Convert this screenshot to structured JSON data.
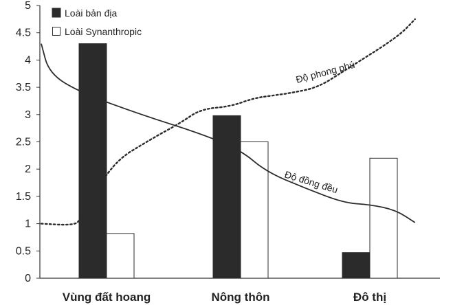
{
  "chart_data": {
    "type": "bar",
    "categories": [
      "Vùng đất hoang",
      "Nông thôn",
      "Đô thị"
    ],
    "series": [
      {
        "name": "Loài bản địa",
        "values": [
          4.3,
          2.98,
          0.47
        ],
        "color": "#2b2b2b"
      },
      {
        "name": "Loài Synanthropic",
        "values": [
          0.82,
          2.5,
          2.2
        ],
        "color": "#ffffff"
      }
    ],
    "ylim": [
      0,
      5
    ],
    "yticks": [
      "0",
      "0.5",
      "1",
      "1.5",
      "2",
      "2.5",
      "3",
      "3.5",
      "4",
      "4.5",
      "5"
    ],
    "ytick_values": [
      0,
      0.5,
      1,
      1.5,
      2,
      2.5,
      3,
      3.5,
      4,
      4.5,
      5
    ],
    "lines": [
      {
        "name": "Độ phong phú",
        "style": "dotted",
        "x": [
          0,
          0.15,
          0.2,
          0.35,
          0.55,
          0.7,
          0.8,
          0.95,
          1.1,
          1.25,
          1.4,
          1.6,
          1.8,
          2.0,
          2.1,
          2.25,
          2.35
        ],
        "y": [
          1.0,
          0.97,
          1.05,
          2.1,
          2.55,
          2.85,
          3.1,
          3.15,
          3.3,
          3.35,
          3.4,
          3.5,
          3.8,
          4.1,
          4.25,
          4.5,
          4.75
        ]
      },
      {
        "name": "Độ đồng đều",
        "style": "solid",
        "x": [
          0,
          0.04,
          0.2,
          0.5,
          0.8,
          1.0,
          1.2,
          1.5,
          1.8,
          2.0,
          2.2,
          2.35
        ],
        "y": [
          4.3,
          3.75,
          3.4,
          3.0,
          2.65,
          2.35,
          1.95,
          1.65,
          1.38,
          1.35,
          1.25,
          1.02
        ]
      }
    ],
    "line_labels": [
      "Độ phong phú",
      "Độ đồng đều"
    ],
    "legend": [
      "Loài bản địa",
      "Loài Synanthropic"
    ],
    "legend_position": "top-left",
    "grid": false
  }
}
